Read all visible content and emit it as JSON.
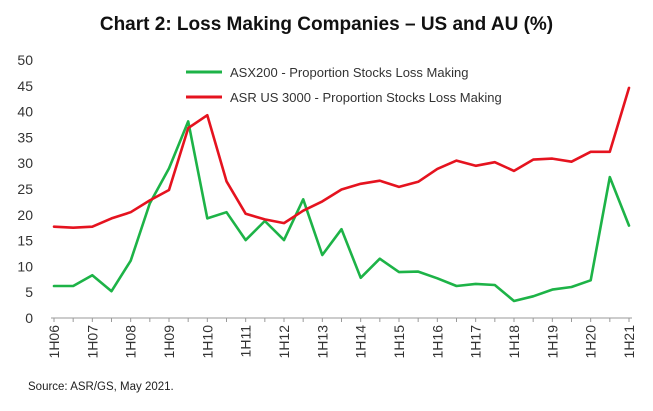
{
  "chart_data": {
    "type": "line",
    "title": "Chart 2: Loss Making Companies – US and AU (%)",
    "source": "Source: ASR/GS, May 2021.",
    "xlabel": "",
    "ylabel": "",
    "ylim": [
      0,
      50
    ],
    "yticks": [
      0,
      5,
      10,
      15,
      20,
      25,
      30,
      35,
      40,
      45,
      50
    ],
    "grid": false,
    "legend_position": "top-center",
    "x": [
      "1H06",
      "2H06",
      "1H07",
      "2H07",
      "1H08",
      "2H08",
      "1H09",
      "2H09",
      "1H10",
      "2H10",
      "1H11",
      "2H11",
      "1H12",
      "2H12",
      "1H13",
      "2H13",
      "1H14",
      "2H14",
      "1H15",
      "2H15",
      "1H16",
      "2H16",
      "1H17",
      "2H17",
      "1H18",
      "2H18",
      "1H19",
      "2H19",
      "1H20",
      "2H20",
      "1H21"
    ],
    "xtick_labels": [
      "1H06",
      "1H07",
      "1H08",
      "1H09",
      "1H10",
      "1H11",
      "1H12",
      "1H13",
      "1H14",
      "1H15",
      "1H16",
      "1H17",
      "1H18",
      "1H19",
      "1H20",
      "1H21"
    ],
    "series": [
      {
        "name": "ASX200 - Proportion Stocks Loss Making",
        "color": "#1db347",
        "values": [
          6.2,
          6.2,
          8.3,
          5.2,
          11.1,
          22.2,
          29.0,
          38.1,
          19.3,
          20.5,
          15.1,
          18.8,
          15.1,
          23.0,
          12.2,
          17.2,
          7.8,
          11.5,
          8.9,
          9.0,
          7.7,
          6.2,
          6.6,
          6.4,
          3.3,
          4.2,
          5.5,
          6.0,
          7.3,
          27.3,
          17.9
        ]
      },
      {
        "name": "ASR US 3000 - Proportion Stocks Loss Making",
        "color": "#e5131f",
        "values": [
          17.7,
          17.5,
          17.7,
          19.3,
          20.5,
          22.8,
          24.8,
          36.8,
          39.3,
          26.5,
          20.2,
          19.1,
          18.4,
          20.8,
          22.6,
          24.9,
          26.0,
          26.6,
          25.4,
          26.4,
          28.9,
          30.5,
          29.5,
          30.2,
          28.5,
          30.7,
          30.9,
          30.3,
          32.2,
          32.2,
          44.6
        ]
      }
    ]
  }
}
